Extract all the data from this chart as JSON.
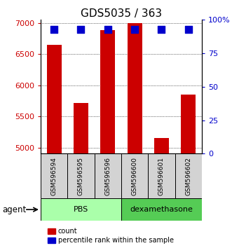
{
  "title": "GDS5035 / 363",
  "samples": [
    "GSM596594",
    "GSM596595",
    "GSM596596",
    "GSM596600",
    "GSM596601",
    "GSM596602"
  ],
  "counts": [
    6650,
    5720,
    6880,
    7000,
    5150,
    5850
  ],
  "percentiles": [
    93,
    93,
    93,
    93,
    93,
    93
  ],
  "bar_color": "#cc0000",
  "dot_color": "#0000cc",
  "ylim_left": [
    4900,
    7050
  ],
  "ylim_right": [
    0,
    100
  ],
  "yticks_left": [
    5000,
    5500,
    6000,
    6500,
    7000
  ],
  "yticks_right": [
    0,
    25,
    50,
    75,
    100
  ],
  "ytick_labels_right": [
    "0",
    "25",
    "50",
    "75",
    "100%"
  ],
  "groups": [
    {
      "label": "PBS",
      "color": "#aaffaa",
      "start": 0,
      "end": 3
    },
    {
      "label": "dexamethasone",
      "color": "#55cc55",
      "start": 3,
      "end": 6
    }
  ],
  "group_row_label": "agent",
  "legend_items": [
    {
      "label": "count",
      "color": "#cc0000"
    },
    {
      "label": "percentile rank within the sample",
      "color": "#0000cc"
    }
  ],
  "bar_width": 0.55,
  "dot_size": 55,
  "left_tick_color": "#cc0000",
  "right_tick_color": "#0000cc",
  "title_fontsize": 11,
  "tick_fontsize": 8,
  "sample_box_color": "#d3d3d3",
  "n_samples": 6
}
